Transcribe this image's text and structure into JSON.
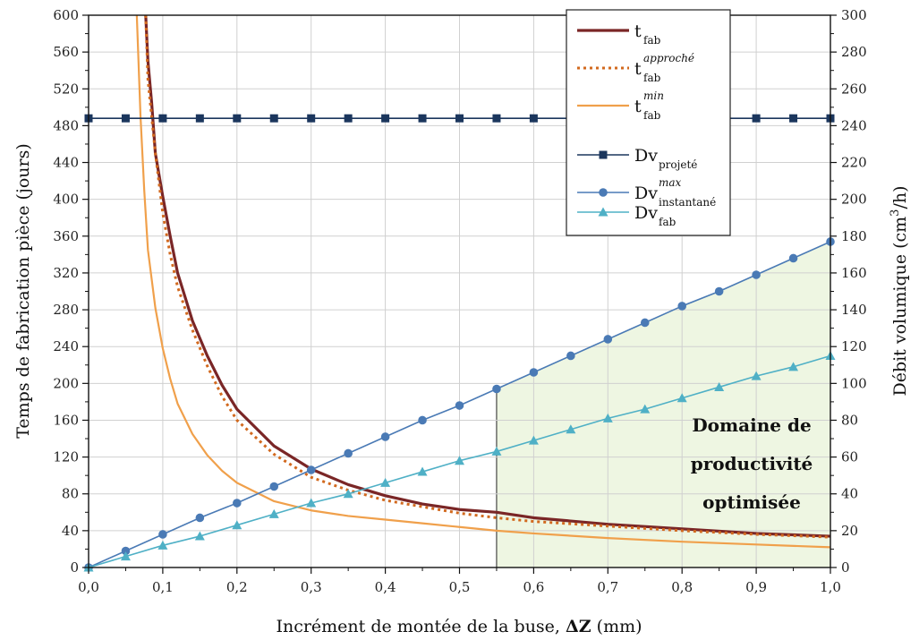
{
  "colors": {
    "t_fab": "#7a2626",
    "t_fab_approche": "#d2691e",
    "t_fab_min": "#f0a04b",
    "dv_projete": "#1b365d",
    "dv_instantane_max": "#4a7ab5",
    "dv_fab": "#4fb0c6",
    "region_fill": "#eef6e2",
    "grid": "#d0d0d0"
  },
  "chart_data": {
    "type": "line",
    "xlabel": "Incrément de montée de la buse, ",
    "xlabel_symbol": "ΔZ",
    "xlabel_unit": " (mm)",
    "ylabel": "Temps de fabrication pièce (jours)",
    "y2label_pre": "Débit volumique (cm",
    "y2label_sup": "3",
    "y2label_post": "/h)",
    "xlim": [
      0,
      1.0
    ],
    "ylim": [
      0,
      600
    ],
    "y2lim": [
      0,
      300
    ],
    "x_ticks": [
      "0,0",
      "0,1",
      "0,2",
      "0,3",
      "0,4",
      "0,5",
      "0,6",
      "0,7",
      "0,8",
      "0,9",
      "1,0"
    ],
    "y_ticks": [
      "0",
      "40",
      "80",
      "120",
      "160",
      "200",
      "240",
      "280",
      "320",
      "360",
      "400",
      "440",
      "480",
      "520",
      "560",
      "600"
    ],
    "y2_ticks": [
      "0",
      "20",
      "40",
      "60",
      "80",
      "100",
      "120",
      "140",
      "160",
      "180",
      "200",
      "220",
      "240",
      "260",
      "280",
      "300"
    ],
    "grid": true,
    "legend_position": "top-right",
    "region": {
      "x_start": 0.55,
      "x_end": 1.0,
      "lines": [
        "Domaine de",
        "productivité",
        "optimisée"
      ]
    },
    "series": [
      {
        "name": "t",
        "sub": "fab",
        "sup": "",
        "axis": "left",
        "style": "solid",
        "marker": "none",
        "x": [
          0.077,
          0.08,
          0.085,
          0.09,
          0.1,
          0.11,
          0.12,
          0.14,
          0.16,
          0.18,
          0.2,
          0.25,
          0.3,
          0.35,
          0.4,
          0.45,
          0.5,
          0.55,
          0.6,
          0.7,
          0.8,
          0.9,
          1.0
        ],
        "values": [
          600,
          550,
          505,
          450,
          403,
          360,
          320,
          268,
          230,
          198,
          172,
          132,
          107,
          90,
          78,
          69,
          63,
          60,
          54,
          47,
          42,
          37,
          34
        ]
      },
      {
        "name": "t",
        "sub": "fab",
        "sup": "approché",
        "axis": "left",
        "style": "dotted",
        "marker": "none",
        "x": [
          0.077,
          0.08,
          0.09,
          0.1,
          0.11,
          0.12,
          0.14,
          0.16,
          0.18,
          0.2,
          0.25,
          0.3,
          0.35,
          0.4,
          0.45,
          0.5,
          0.55,
          0.6,
          0.7,
          0.8,
          0.9,
          1.0
        ],
        "values": [
          600,
          530,
          450,
          385,
          340,
          305,
          258,
          219,
          186,
          160,
          123,
          98,
          84,
          73,
          66,
          59,
          54,
          50,
          45,
          40,
          36,
          33
        ]
      },
      {
        "name": "t",
        "sub": "fab",
        "sup": "min",
        "axis": "left",
        "style": "solid",
        "marker": "none",
        "x": [
          0.065,
          0.07,
          0.075,
          0.08,
          0.09,
          0.1,
          0.11,
          0.12,
          0.14,
          0.16,
          0.18,
          0.2,
          0.25,
          0.3,
          0.35,
          0.4,
          0.45,
          0.5,
          0.55,
          0.6,
          0.7,
          0.8,
          0.9,
          1.0
        ],
        "values": [
          600,
          490,
          410,
          345,
          282,
          238,
          205,
          178,
          145,
          122,
          105,
          92,
          72,
          62,
          56,
          52,
          48,
          44,
          40,
          37,
          32,
          28,
          25,
          22
        ]
      },
      {
        "name": "Dv",
        "sub": "projeté",
        "sup": "",
        "axis": "right",
        "style": "solid",
        "marker": "square",
        "x": [
          0,
          0.05,
          0.1,
          0.15,
          0.2,
          0.25,
          0.3,
          0.35,
          0.4,
          0.45,
          0.5,
          0.55,
          0.6,
          0.65,
          0.7,
          0.75,
          0.8,
          0.85,
          0.9,
          0.95,
          1.0
        ],
        "values": [
          244,
          244,
          244,
          244,
          244,
          244,
          244,
          244,
          244,
          244,
          244,
          244,
          244,
          244,
          244,
          244,
          244,
          244,
          244,
          244,
          244
        ]
      },
      {
        "name": "Dv",
        "sub": "instantané",
        "sup": "max",
        "axis": "right",
        "style": "solid",
        "marker": "circle",
        "x": [
          0,
          0.05,
          0.1,
          0.15,
          0.2,
          0.25,
          0.3,
          0.35,
          0.4,
          0.45,
          0.5,
          0.55,
          0.6,
          0.65,
          0.7,
          0.75,
          0.8,
          0.85,
          0.9,
          0.95,
          1.0
        ],
        "values": [
          0,
          9,
          18,
          27,
          35,
          44,
          53,
          62,
          71,
          80,
          88,
          97,
          106,
          115,
          124,
          133,
          142,
          150,
          159,
          168,
          177
        ]
      },
      {
        "name": "Dv",
        "sub": "fab",
        "sup": "",
        "axis": "right",
        "style": "solid",
        "marker": "triangle",
        "x": [
          0,
          0.05,
          0.1,
          0.15,
          0.2,
          0.25,
          0.3,
          0.35,
          0.4,
          0.45,
          0.5,
          0.55,
          0.6,
          0.65,
          0.7,
          0.75,
          0.8,
          0.85,
          0.9,
          0.95,
          1.0
        ],
        "values": [
          0,
          6,
          12,
          17,
          23,
          29,
          35,
          40,
          46,
          52,
          58,
          63,
          69,
          75,
          81,
          86,
          92,
          98,
          104,
          109,
          115
        ]
      }
    ]
  }
}
